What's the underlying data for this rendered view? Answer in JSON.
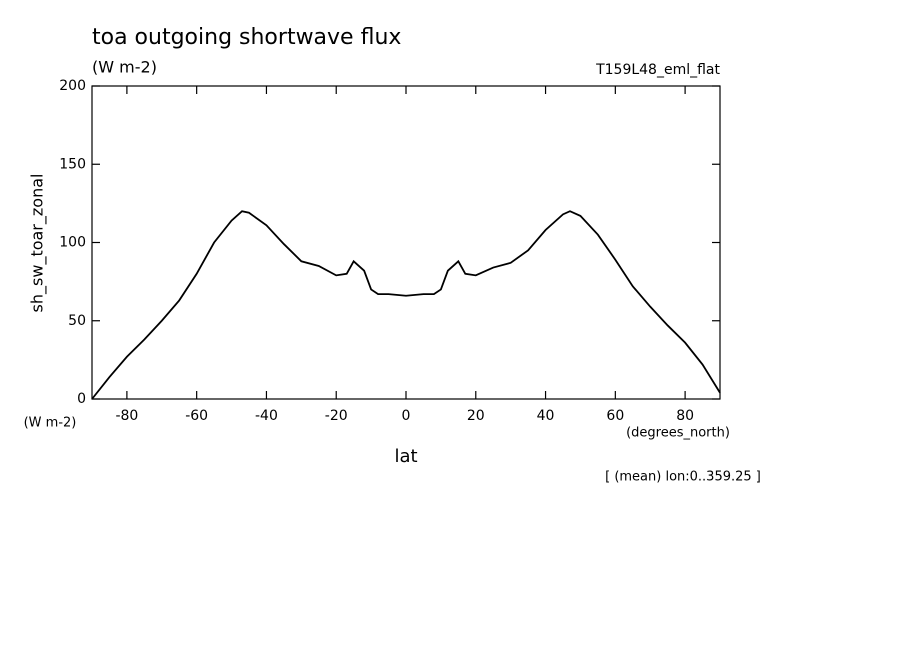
{
  "chart_data": {
    "type": "line",
    "title": "toa outgoing shortwave flux",
    "units": "(W m-2)",
    "dataset": "T159L48_eml_flat",
    "y_label": "sh_sw_toar_zonal",
    "y_units": "(W m-2)",
    "x_units": "(degrees_north)",
    "x_label": "lat",
    "note": "[ (mean) lon:0..359.25 ]",
    "x": [
      -90,
      -85,
      -80,
      -75,
      -70,
      -65,
      -60,
      -55,
      -50,
      -47,
      -45,
      -40,
      -35,
      -30,
      -25,
      -20,
      -17,
      -15,
      -12,
      -10,
      -8,
      -5,
      0,
      5,
      8,
      10,
      12,
      15,
      17,
      20,
      25,
      30,
      35,
      40,
      45,
      47,
      50,
      55,
      60,
      65,
      70,
      75,
      80,
      85,
      90
    ],
    "series": [
      {
        "color": "#000000",
        "values": [
          0,
          14,
          27,
          38,
          50,
          63,
          80,
          100,
          114,
          120,
          119,
          111,
          99,
          88,
          85,
          79,
          80,
          88,
          82,
          70,
          67,
          67,
          66,
          67,
          67,
          70,
          82,
          88,
          80,
          79,
          84,
          87,
          95,
          108,
          118,
          120,
          117,
          105,
          89,
          72,
          59,
          47,
          36,
          22,
          4
        ]
      }
    ],
    "xlim": [
      -90,
      90
    ],
    "xticks": [
      -80,
      -60,
      -40,
      -20,
      0,
      20,
      40,
      60,
      80
    ],
    "ylim": [
      0,
      200
    ],
    "yticks": [
      0,
      50,
      100,
      150,
      200
    ]
  }
}
